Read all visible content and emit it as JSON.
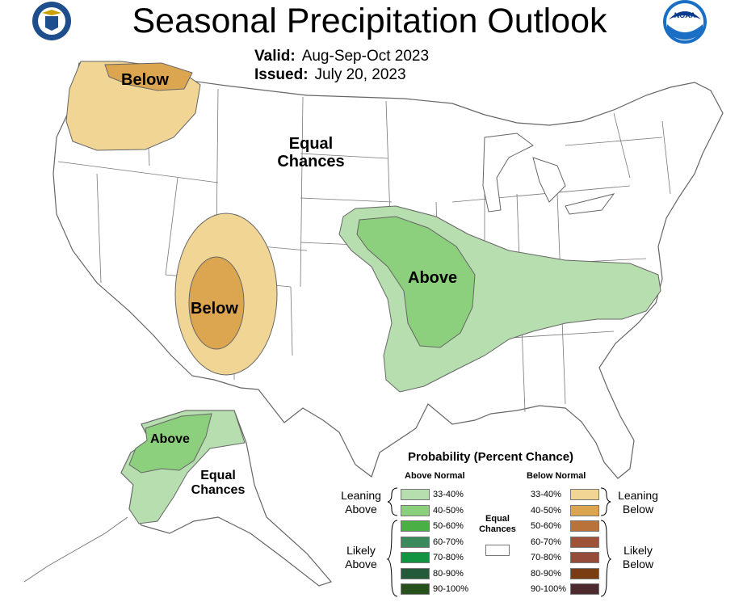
{
  "header": {
    "title": "Seasonal Precipitation Outlook",
    "valid_label": "Valid:",
    "valid_value": "Aug-Sep-Oct 2023",
    "issued_label": "Issued:",
    "issued_value": "July 20, 2023"
  },
  "logos": {
    "left": "department-of-commerce-seal",
    "right": "noaa-logo"
  },
  "map_labels": {
    "nw_below": "Below",
    "equal_chances_line1": "Equal",
    "equal_chances_line2": "Chances",
    "sw_below": "Below",
    "central_above": "Above",
    "ak_above": "Above",
    "ak_equal_line1": "Equal",
    "ak_equal_line2": "Chances"
  },
  "legend": {
    "title": "Probability (Percent Chance)",
    "above_header": "Above Normal",
    "below_header": "Below Normal",
    "equal_line1": "Equal",
    "equal_line2": "Chances",
    "leaning_above_1": "Leaning",
    "leaning_above_2": "Above",
    "likely_above_1": "Likely",
    "likely_above_2": "Above",
    "leaning_below_1": "Leaning",
    "leaning_below_2": "Below",
    "likely_below_1": "Likely",
    "likely_below_2": "Below",
    "above": [
      {
        "range": "33-40%",
        "color": "#b6deae"
      },
      {
        "range": "40-50%",
        "color": "#8ccf7c"
      },
      {
        "range": "50-60%",
        "color": "#4aaf44"
      },
      {
        "range": "60-70%",
        "color": "#3a8a5c"
      },
      {
        "range": "70-80%",
        "color": "#129443"
      },
      {
        "range": "80-90%",
        "color": "#235a3a"
      },
      {
        "range": "90-100%",
        "color": "#26501c"
      }
    ],
    "below": [
      {
        "range": "33-40%",
        "color": "#f1d595"
      },
      {
        "range": "40-50%",
        "color": "#dca54f"
      },
      {
        "range": "50-60%",
        "color": "#b9723a"
      },
      {
        "range": "60-70%",
        "color": "#9e5338"
      },
      {
        "range": "70-80%",
        "color": "#954c3a"
      },
      {
        "range": "80-90%",
        "color": "#7a3d13"
      },
      {
        "range": "90-100%",
        "color": "#4c2a2d"
      }
    ]
  }
}
